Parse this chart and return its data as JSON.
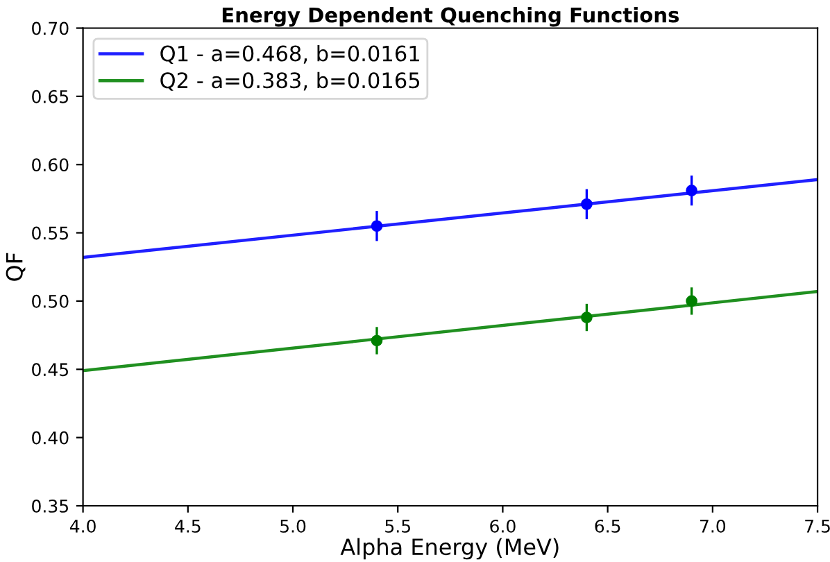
{
  "chart_data": {
    "type": "line",
    "title": "Energy Dependent Quenching Functions",
    "xlabel": "Alpha Energy (MeV)",
    "ylabel": "QF",
    "xlim": [
      4.0,
      7.5
    ],
    "ylim": [
      0.35,
      0.7
    ],
    "xticks": [
      {
        "value": 4.0,
        "label": "4.0"
      },
      {
        "value": 4.5,
        "label": "4.5"
      },
      {
        "value": 5.0,
        "label": "5.0"
      },
      {
        "value": 5.5,
        "label": "5.5"
      },
      {
        "value": 6.0,
        "label": "6.0"
      },
      {
        "value": 6.5,
        "label": "6.5"
      },
      {
        "value": 7.0,
        "label": "7.0"
      },
      {
        "value": 7.5,
        "label": "7.5"
      }
    ],
    "yticks": [
      {
        "value": 0.35,
        "label": "0.35"
      },
      {
        "value": 0.4,
        "label": "0.40"
      },
      {
        "value": 0.45,
        "label": "0.45"
      },
      {
        "value": 0.5,
        "label": "0.50"
      },
      {
        "value": 0.55,
        "label": "0.55"
      },
      {
        "value": 0.6,
        "label": "0.60"
      },
      {
        "value": 0.65,
        "label": "0.65"
      },
      {
        "value": 0.7,
        "label": "0.70"
      }
    ],
    "grid": false,
    "legend": "top left",
    "series": [
      {
        "name": "Q1 - a=0.468, b=0.0161",
        "color": "#2020ff",
        "x": [
          4.0,
          7.5
        ],
        "values": [
          0.532,
          0.589
        ],
        "marker": "none"
      },
      {
        "name": "Q2 - a=0.383, b=0.0165",
        "color": "#209020",
        "x": [
          4.0,
          7.5
        ],
        "values": [
          0.449,
          0.507
        ],
        "marker": "none"
      },
      {
        "type": "scatter",
        "color": "#0000ff",
        "x": [
          5.4,
          6.4,
          6.9
        ],
        "values": [
          0.555,
          0.571,
          0.581
        ],
        "errors": [
          0.011,
          0.011,
          0.011
        ],
        "marker": "circle"
      },
      {
        "type": "scatter",
        "color": "#008000",
        "x": [
          5.4,
          6.4,
          6.9
        ],
        "values": [
          0.471,
          0.488,
          0.5
        ],
        "errors": [
          0.01,
          0.01,
          0.01
        ],
        "marker": "circle"
      }
    ]
  }
}
